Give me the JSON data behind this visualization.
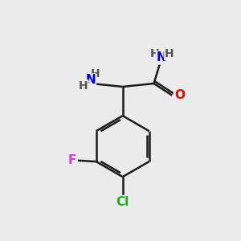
{
  "background_color": "#ebebeb",
  "bond_color": "#1a1a1a",
  "bond_width": 1.8,
  "atom_colors": {
    "N": "#0000ee",
    "O": "#ee0000",
    "F": "#cc44cc",
    "Cl": "#22aa22",
    "C": "#1a1a1a",
    "H": "#555555"
  },
  "font_size_heavy": 11,
  "font_size_H": 10,
  "xlim": [
    0,
    10
  ],
  "ylim": [
    0,
    11
  ]
}
